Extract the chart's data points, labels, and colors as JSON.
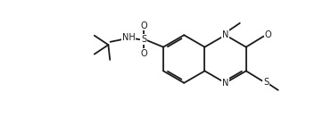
{
  "bg_color": "#ffffff",
  "line_color": "#1a1a1a",
  "line_width": 1.3,
  "font_size": 7.0,
  "fig_width": 3.53,
  "fig_height": 1.32,
  "dpi": 100,
  "xlim": [
    0,
    9.5
  ],
  "ylim": [
    0,
    3.5
  ]
}
